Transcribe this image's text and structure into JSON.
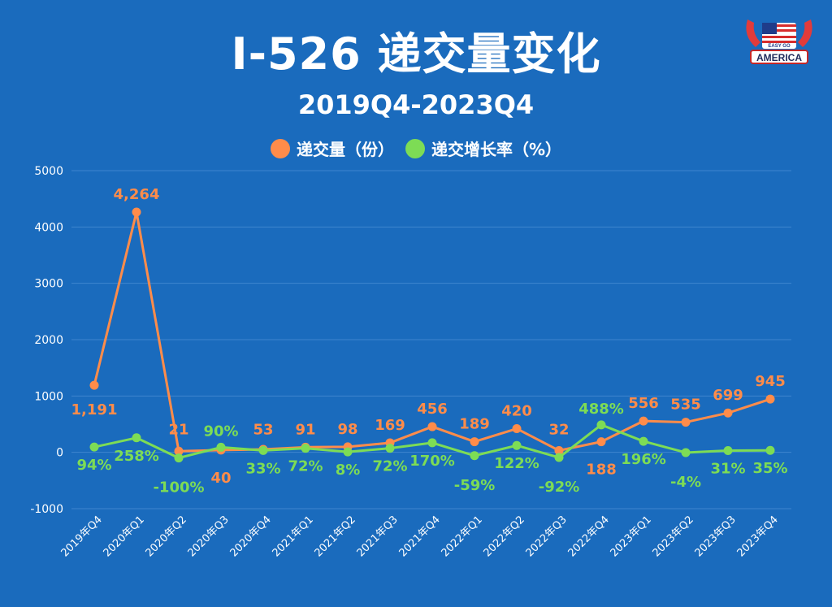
{
  "header": {
    "title": "I-526 递交量变化",
    "subtitle": "2019Q4-2023Q4"
  },
  "logo": {
    "top_text": "EASY GO",
    "main_text": "AMERICA"
  },
  "colors": {
    "background": "#1a6bbd",
    "series_volume": "#ff8c4a",
    "series_growth": "#7ddc55",
    "gridline": "#3f86cf"
  },
  "chart_data": {
    "type": "line",
    "categories": [
      "2019年Q4",
      "2020年Q1",
      "2020年Q2",
      "2020年Q3",
      "2020年Q4",
      "2021年Q1",
      "2021年Q2",
      "2021年Q3",
      "2021年Q4",
      "2022年Q1",
      "2022年Q2",
      "2022年Q3",
      "2022年Q4",
      "2023年Q1",
      "2023年Q2",
      "2023年Q3",
      "2023年Q4"
    ],
    "ylim": [
      -1000,
      5000
    ],
    "yticks": [
      -1000,
      0,
      1000,
      2000,
      3000,
      4000,
      5000
    ],
    "grid": true,
    "legend_position": "top-center",
    "series": [
      {
        "name": "递交量（份）",
        "values": [
          1191,
          4264,
          21,
          40,
          53,
          91,
          98,
          169,
          456,
          189,
          420,
          32,
          188,
          556,
          535,
          699,
          945
        ],
        "labels": [
          "1,191",
          "4,264",
          "21",
          "40",
          "53",
          "91",
          "98",
          "169",
          "456",
          "189",
          "420",
          "32",
          "188",
          "556",
          "535",
          "699",
          "945"
        ]
      },
      {
        "name": "递交增长率（%）",
        "values": [
          94,
          258,
          -100,
          90,
          33,
          72,
          8,
          72,
          170,
          -59,
          122,
          -92,
          488,
          196,
          -4,
          31,
          35
        ],
        "labels": [
          "94%",
          "258%",
          "-100%",
          "90%",
          "33%",
          "72%",
          "8%",
          "72%",
          "170%",
          "-59%",
          "122%",
          "-92%",
          "488%",
          "196%",
          "-4%",
          "31%",
          "35%"
        ]
      }
    ]
  }
}
